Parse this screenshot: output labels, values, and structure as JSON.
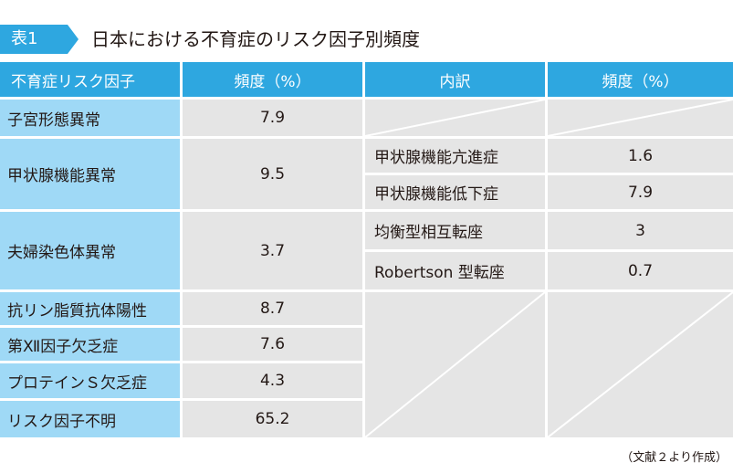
{
  "header": {
    "badge": "表1",
    "title": "日本における不育症のリスク因子別頻度"
  },
  "columns": {
    "factor": "不育症リスク因子",
    "freq": "頻度（%）",
    "breakdown": "内訳",
    "subfreq": "頻度（%）"
  },
  "rows": [
    {
      "factor": "子宮形態異常",
      "freq": "7.9"
    },
    {
      "factor": "甲状腺機能異常",
      "freq": "9.5",
      "sub": [
        {
          "name": "甲状腺機能亢進症",
          "freq": "1.6"
        },
        {
          "name": "甲状腺機能低下症",
          "freq": "7.9"
        }
      ]
    },
    {
      "factor": "夫婦染色体異常",
      "freq": "3.7",
      "sub": [
        {
          "name": "均衡型相互転座",
          "freq": "3"
        },
        {
          "name": "Robertson 型転座",
          "freq": "0.7"
        }
      ]
    },
    {
      "factor": "抗リン脂質抗体陽性",
      "freq": "8.7"
    },
    {
      "factor": "第Ⅻ因子欠乏症",
      "freq": "7.6"
    },
    {
      "factor": "プロテインＳ欠乏症",
      "freq": "4.3"
    },
    {
      "factor": "リスク因子不明",
      "freq": "65.2"
    }
  ],
  "source": "（文献２より作成）"
}
